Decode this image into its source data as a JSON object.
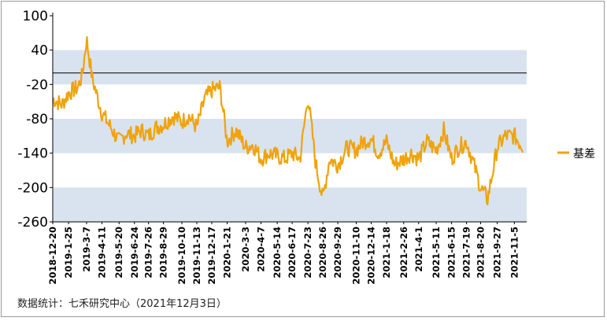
{
  "source_note": "数据统计：七禾研究中心（2021年12月3日）",
  "colors": {
    "line": "#f0a30a",
    "band": "#d8e3ef",
    "axis": "#000000",
    "ref_line": "#000000"
  },
  "chart_data": {
    "type": "line",
    "title": "",
    "xlabel": "",
    "ylabel": "",
    "ylim": [
      -260,
      100
    ],
    "yticks": [
      100,
      40,
      -20,
      -80,
      -140,
      -200,
      -260
    ],
    "ytick_labels": [
      "100",
      "40",
      "-20",
      "-80",
      "-140",
      "-200",
      "-260"
    ],
    "reference_line_y": 0,
    "shaded_bands": [
      [
        -20,
        40
      ],
      [
        -140,
        -80
      ],
      [
        -260,
        -200
      ]
    ],
    "legend_position": "right",
    "x_tick_labels": [
      "2018-12-20",
      "2019-1-25",
      "2019-3-7",
      "2019-4-11",
      "2019-5-20",
      "2019-6-24",
      "2019-7-26",
      "2019-8-29",
      "2019-10-10",
      "2019-11-13",
      "2019-12-17",
      "2020-1-21",
      "2020-3-3",
      "2020-4-7",
      "2020-5-14",
      "2020-6-17",
      "2020-7-23",
      "2020-8-26",
      "2020-9-29",
      "2020-11-10",
      "2020-12-14",
      "2021-1-18",
      "2021-2-26",
      "2021-4-1",
      "2021-5-11",
      "2021-6-15",
      "2021-7-19",
      "2021-8-20",
      "2021-9-27",
      "2021-11-5"
    ],
    "series": [
      {
        "name": "基差",
        "x": [
          "2018-12-20",
          "2019-1-10",
          "2019-1-25",
          "2019-2-15",
          "2019-2-25",
          "2019-3-7",
          "2019-3-20",
          "2019-4-11",
          "2019-5-1",
          "2019-5-20",
          "2019-6-5",
          "2019-6-24",
          "2019-7-10",
          "2019-7-26",
          "2019-8-12",
          "2019-8-29",
          "2019-9-20",
          "2019-10-10",
          "2019-10-25",
          "2019-11-13",
          "2019-12-1",
          "2019-12-17",
          "2020-1-5",
          "2020-1-21",
          "2020-2-10",
          "2020-3-3",
          "2020-3-20",
          "2020-4-7",
          "2020-4-25",
          "2020-5-14",
          "2020-6-1",
          "2020-6-17",
          "2020-7-5",
          "2020-7-23",
          "2020-8-10",
          "2020-8-26",
          "2020-9-10",
          "2020-9-29",
          "2020-10-20",
          "2020-11-10",
          "2020-11-25",
          "2020-12-14",
          "2020-12-30",
          "2021-1-18",
          "2021-2-5",
          "2021-2-26",
          "2021-3-15",
          "2021-4-1",
          "2021-4-20",
          "2021-5-11",
          "2021-5-28",
          "2021-6-15",
          "2021-7-1",
          "2021-7-19",
          "2021-8-5",
          "2021-8-20",
          "2021-9-5",
          "2021-9-27",
          "2021-10-15",
          "2021-11-5",
          "2021-11-25"
        ],
        "values": [
          -45,
          -55,
          -35,
          -25,
          -5,
          60,
          -10,
          -70,
          -95,
          -120,
          -105,
          -110,
          -100,
          -110,
          -95,
          -90,
          -75,
          -85,
          -75,
          -95,
          -45,
          -30,
          -25,
          -120,
          -100,
          -130,
          -125,
          -150,
          -140,
          -145,
          -150,
          -140,
          -150,
          -40,
          -160,
          -220,
          -150,
          -160,
          -130,
          -135,
          -120,
          -115,
          -140,
          -120,
          -160,
          -150,
          -140,
          -150,
          -120,
          -135,
          -100,
          -150,
          -130,
          -120,
          -160,
          -200,
          -220,
          -130,
          -110,
          -110,
          -130
        ]
      }
    ]
  }
}
